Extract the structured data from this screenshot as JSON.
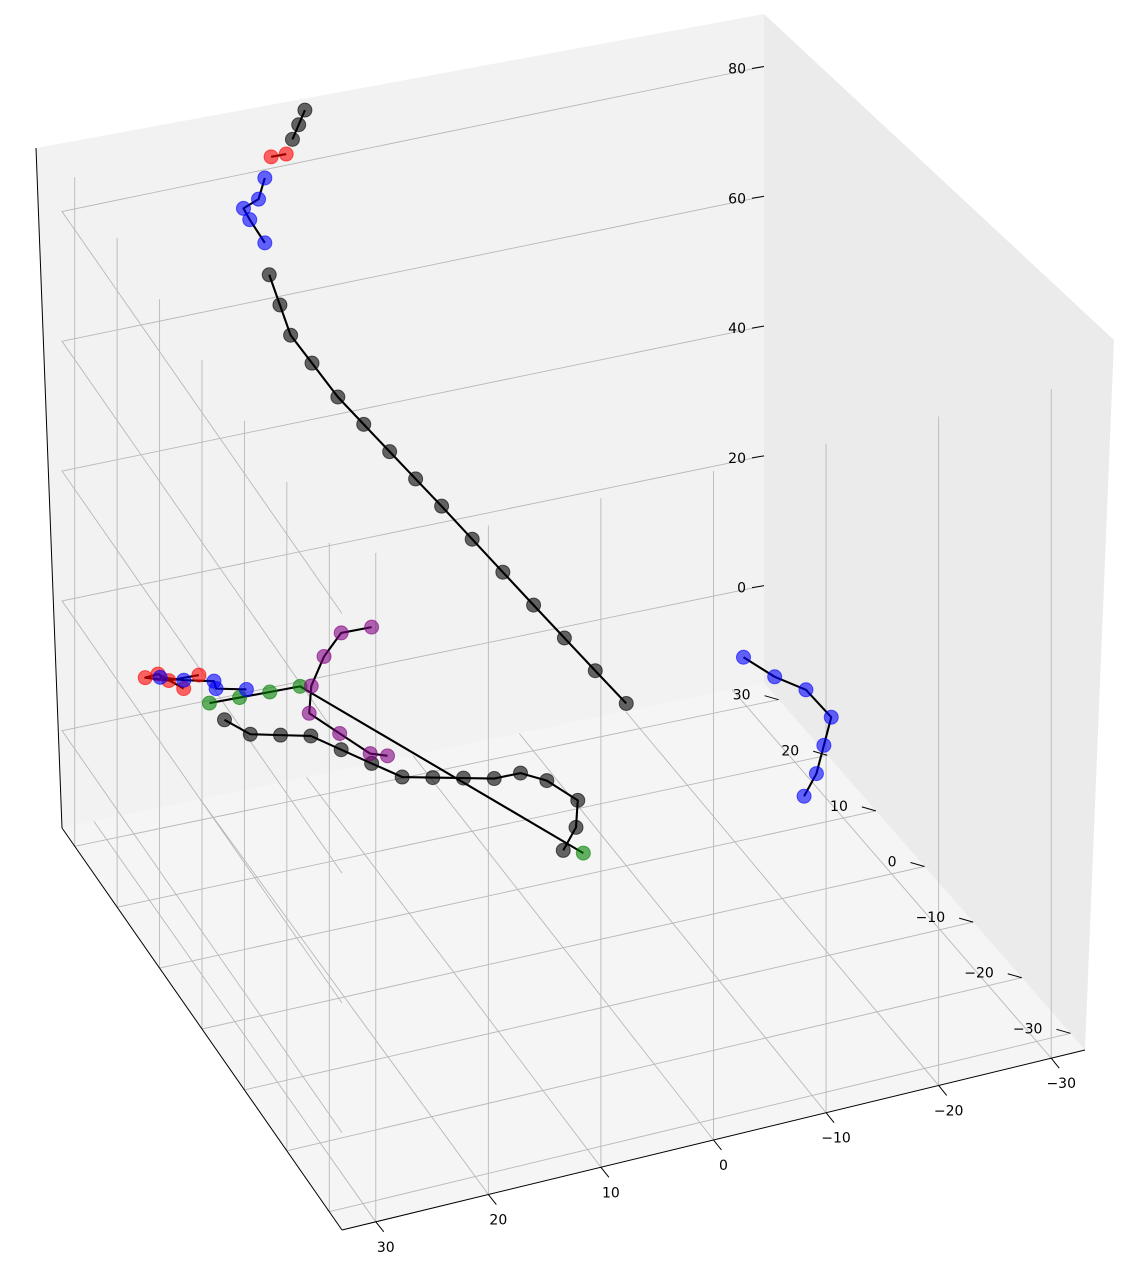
{
  "chart_data": {
    "type": "scatter",
    "subtype": "3d-line-with-markers",
    "title": "",
    "xlabel": "",
    "ylabel": "",
    "zlabel": "",
    "grid": true,
    "legend": "none",
    "axes": {
      "x": {
        "ticks": [
          -30,
          -20,
          -10,
          0,
          10,
          20,
          30
        ],
        "tick_labels": [
          "−30",
          "−20",
          "−10",
          "0",
          "10",
          "20",
          "30"
        ]
      },
      "y": {
        "ticks": [
          -30,
          -20,
          -10,
          0,
          10,
          20,
          30
        ],
        "tick_labels": [
          "−30",
          "−20",
          "−10",
          "0",
          "10",
          "20",
          "30"
        ]
      },
      "z": {
        "ticks": [
          0,
          20,
          40,
          60,
          80
        ],
        "tick_labels": [
          "0",
          "20",
          "40",
          "60",
          "80"
        ]
      }
    },
    "colors": {
      "black": "#000000",
      "blue": "#0000ff",
      "red": "#ff0000",
      "green": "#008000",
      "purple": "#800080"
    },
    "series": [
      {
        "color": "black",
        "points": [
          [
            0,
            0,
            0
          ],
          [
            -2,
            2,
            1
          ],
          [
            -3,
            4,
            3
          ],
          [
            -1,
            6,
            5
          ],
          [
            1,
            7,
            6
          ],
          [
            3,
            8,
            5
          ],
          [
            5,
            10,
            4
          ],
          [
            7,
            12,
            3
          ],
          [
            9,
            14,
            2
          ],
          [
            11,
            16,
            3
          ],
          [
            13,
            18,
            4
          ],
          [
            15,
            20,
            5
          ],
          [
            17,
            22,
            4
          ],
          [
            19,
            24,
            3
          ],
          [
            21,
            25,
            5
          ]
        ]
      },
      {
        "color": "green",
        "points": [
          [
            22,
            26,
            7
          ],
          [
            20,
            24,
            9
          ],
          [
            18,
            22,
            11
          ],
          [
            16,
            20,
            13
          ],
          [
            -1,
            -2,
            1
          ]
        ]
      },
      {
        "color": "red",
        "points": [
          [
            24,
            27,
            9
          ],
          [
            26,
            28,
            11
          ],
          [
            28,
            26,
            13
          ],
          [
            27,
            23,
            15
          ],
          [
            25,
            21,
            17
          ]
        ]
      },
      {
        "color": "blue",
        "points": [
          [
            29,
            20,
            19
          ],
          [
            28,
            17,
            21
          ],
          [
            26,
            15,
            22
          ],
          [
            27,
            12,
            24
          ],
          [
            25,
            10,
            25
          ]
        ]
      },
      {
        "color": "purple",
        "points": [
          [
            12,
            10,
            10
          ],
          [
            14,
            9,
            12
          ],
          [
            16,
            11,
            14
          ],
          [
            18,
            13,
            16
          ],
          [
            17,
            15,
            18
          ],
          [
            15,
            17,
            20
          ],
          [
            13,
            18,
            22
          ],
          [
            11,
            16,
            24
          ]
        ]
      },
      {
        "color": "blue",
        "points": [
          [
            -22,
            0,
            0
          ],
          [
            -24,
            2,
            1
          ],
          [
            -26,
            5,
            2
          ],
          [
            -28,
            8,
            3
          ],
          [
            -27,
            11,
            5
          ],
          [
            -25,
            13,
            6
          ],
          [
            -23,
            15,
            8
          ]
        ]
      },
      {
        "color": "black",
        "points": [
          [
            -10,
            10,
            10
          ],
          [
            -8,
            12,
            14
          ],
          [
            -6,
            14,
            18
          ],
          [
            -4,
            16,
            22
          ],
          [
            -2,
            18,
            26
          ],
          [
            0,
            20,
            30
          ],
          [
            2,
            22,
            34
          ],
          [
            4,
            23,
            38
          ],
          [
            6,
            24,
            42
          ],
          [
            8,
            25,
            46
          ],
          [
            10,
            26,
            50
          ],
          [
            12,
            27,
            55
          ],
          [
            14,
            27,
            60
          ],
          [
            15,
            27,
            65
          ],
          [
            16,
            27,
            70
          ]
        ]
      },
      {
        "color": "blue",
        "points": [
          [
            16,
            28,
            74
          ],
          [
            17,
            29,
            77
          ],
          [
            18,
            28,
            80
          ],
          [
            17,
            27,
            82
          ],
          [
            16,
            28,
            84
          ]
        ]
      },
      {
        "color": "red",
        "points": [
          [
            15,
            29,
            86
          ],
          [
            14,
            28,
            87
          ]
        ]
      },
      {
        "color": "black",
        "points": [
          [
            13,
            29,
            88
          ],
          [
            12,
            30,
            89
          ],
          [
            11,
            31,
            90
          ]
        ]
      }
    ]
  }
}
